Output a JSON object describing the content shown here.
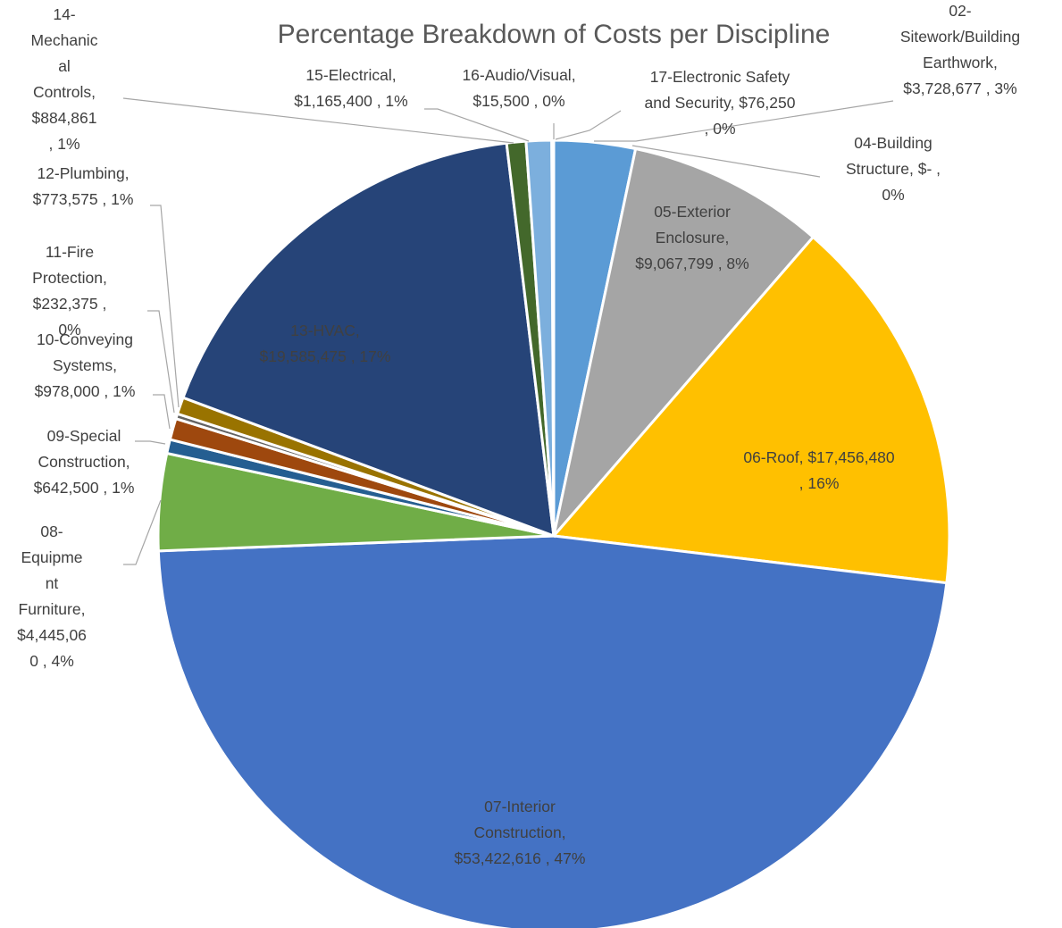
{
  "chart_data": {
    "type": "pie",
    "title": "Percentage Breakdown of Costs per Discipline",
    "slices": [
      {
        "category": "02-Sitework/Building Earthwork",
        "value": 3728677,
        "value_text": "$3,728,677",
        "percent": "3%",
        "color": "#5b9bd5",
        "label_lines": [
          "02-",
          "Sitework/Building",
          "Earthwork,",
          "$3,728,677 , 3%"
        ]
      },
      {
        "category": "04-Building Structure",
        "value": 0,
        "value_text": "$-",
        "percent": "0%",
        "color": "#ed7d31",
        "label_lines": [
          "04-Building",
          "Structure,  $-   ,",
          "0%"
        ]
      },
      {
        "category": "05-Exterior Enclosure",
        "value": 9067799,
        "value_text": "$9,067,799",
        "percent": "8%",
        "color": "#a5a5a5",
        "label_lines": [
          "05-Exterior",
          "Enclosure,",
          "$9,067,799 , 8%"
        ]
      },
      {
        "category": "06-Roof",
        "value": 17456480,
        "value_text": "$17,456,480",
        "percent": "16%",
        "color": "#ffc000",
        "label_lines": [
          "06-Roof,  $17,456,480",
          ", 16%"
        ]
      },
      {
        "category": "07-Interior Construction",
        "value": 53422616,
        "value_text": "$53,422,616",
        "percent": "47%",
        "color": "#4472c4",
        "label_lines": [
          "07-Interior",
          "Construction,",
          "$53,422,616 , 47%"
        ]
      },
      {
        "category": "08-Equipment Furniture",
        "value": 4445060,
        "value_text": "$4,445,060",
        "percent": "4%",
        "color": "#70ad47",
        "label_lines": [
          "08-",
          "Equipme",
          "nt",
          "Furniture,",
          "$4,445,06",
          "0 , 4%"
        ]
      },
      {
        "category": "09-Special Construction",
        "value": 642500,
        "value_text": "$642,500",
        "percent": "1%",
        "color": "#255e91",
        "label_lines": [
          "09-Special",
          "Construction,",
          "$642,500 , 1%"
        ]
      },
      {
        "category": "10-Conveying Systems",
        "value": 978000,
        "value_text": "$978,000",
        "percent": "1%",
        "color": "#9e480e",
        "label_lines": [
          "10-Conveying",
          "Systems,",
          "$978,000 , 1%"
        ]
      },
      {
        "category": "11-Fire Protection",
        "value": 232375,
        "value_text": "$232,375",
        "percent": "0%",
        "color": "#636363",
        "label_lines": [
          "11-Fire",
          "Protection,",
          "$232,375 ,",
          "0%"
        ]
      },
      {
        "category": "12-Plumbing",
        "value": 773575,
        "value_text": "$773,575",
        "percent": "1%",
        "color": "#997300",
        "label_lines": [
          "12-Plumbing,",
          "$773,575 , 1%"
        ]
      },
      {
        "category": "13-HVAC",
        "value": 19585475,
        "value_text": "$19,585,475",
        "percent": "17%",
        "color": "#264478",
        "label_lines": [
          "13-HVAC,",
          "$19,585,475 , 17%"
        ]
      },
      {
        "category": "14-Mechanical Controls",
        "value": 884861,
        "value_text": "$884,861",
        "percent": "1%",
        "color": "#43682b",
        "label_lines": [
          "14-",
          "Mechanic",
          "al",
          "Controls,",
          "$884,861",
          ", 1%"
        ]
      },
      {
        "category": "15-Electrical",
        "value": 1165400,
        "value_text": "$1,165,400",
        "percent": "1%",
        "color": "#7cafdd",
        "label_lines": [
          "15-Electrical,",
          "$1,165,400 , 1%"
        ]
      },
      {
        "category": "16-Audio/Visual",
        "value": 15500,
        "value_text": "$15,500",
        "percent": "0%",
        "color": "#f1975a",
        "label_lines": [
          "16-Audio/Visual,",
          "$15,500 , 0%"
        ]
      },
      {
        "category": "17-Electronic Safety and Security",
        "value": 76250,
        "value_text": "$76,250",
        "percent": "0%",
        "color": "#b7b7b7",
        "label_lines": [
          "17-Electronic Safety",
          "and Security,  $76,250",
          ", 0%"
        ]
      }
    ],
    "start_angle_deg": 0,
    "direction": "clockwise",
    "legend": "none",
    "data_labels": "category, value, percent"
  }
}
